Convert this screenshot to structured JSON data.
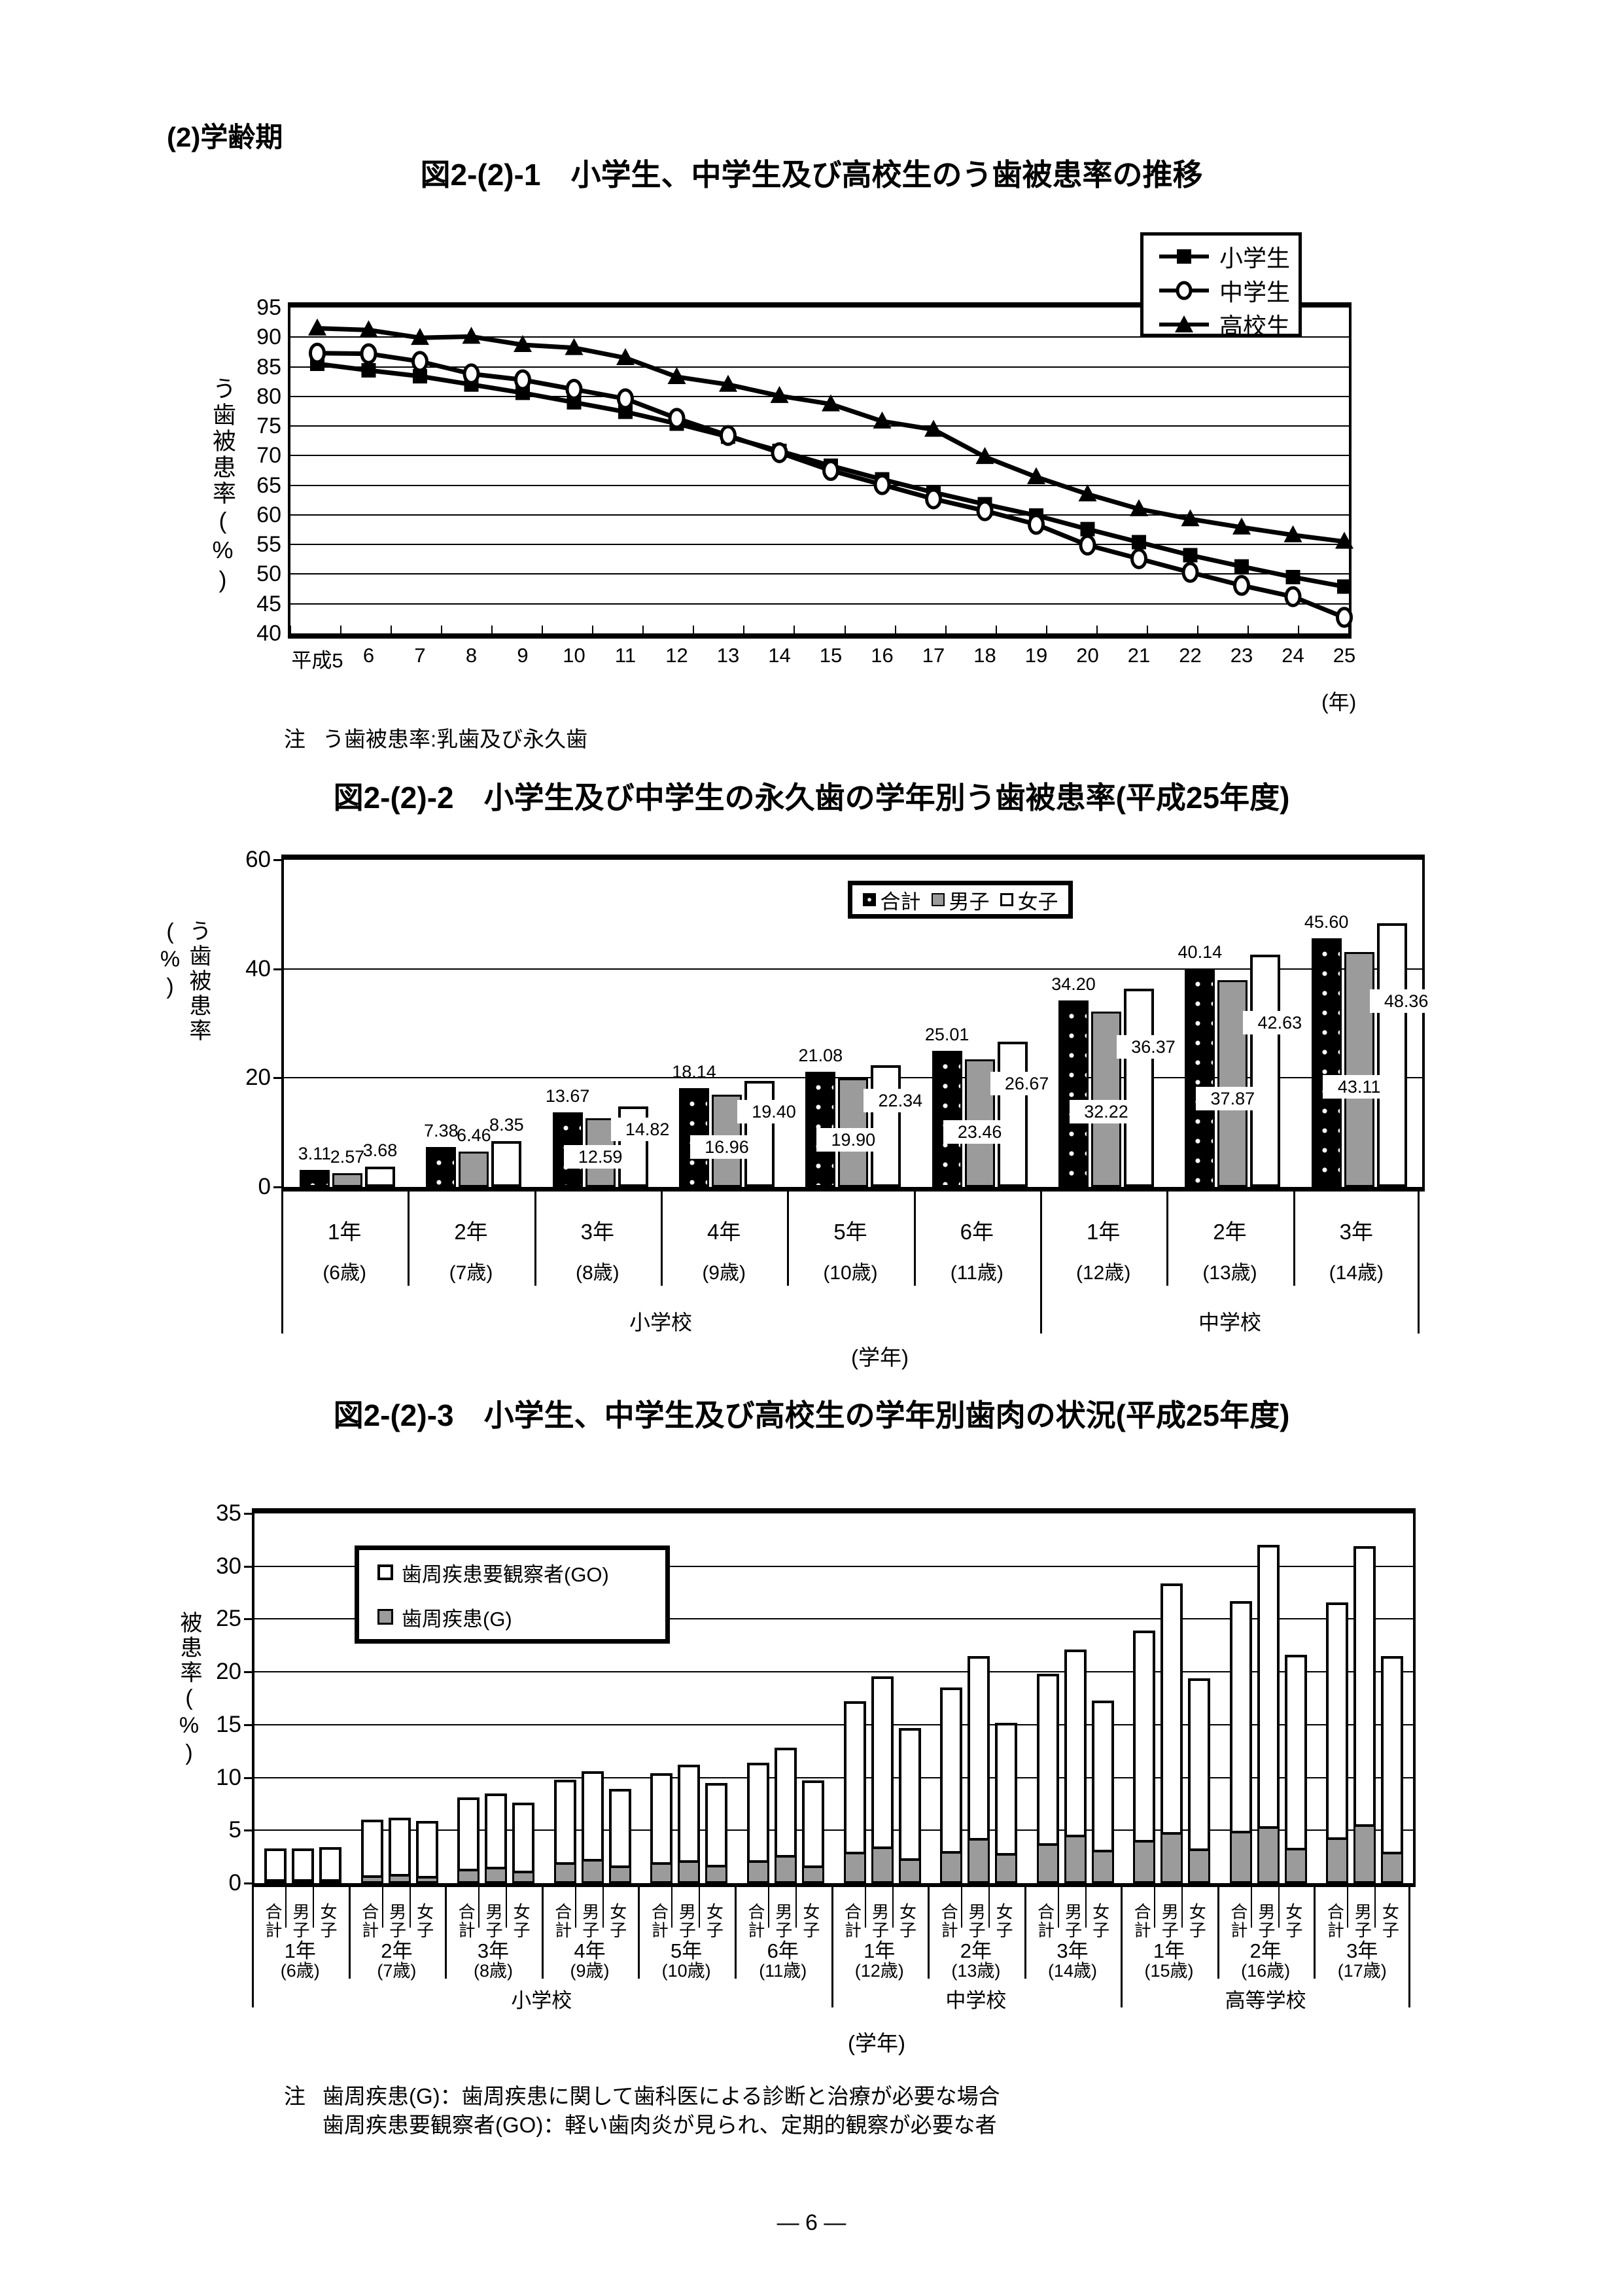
{
  "page": {
    "heading": "(2)学齢期",
    "note1": {
      "label": "注",
      "text": "う歯被患率:乳歯及び永久歯"
    },
    "note3": {
      "label": "注",
      "lines": [
        "歯周疾患(G)：歯周疾患に関して歯科医による診断と治療が必要な場合",
        "歯周疾患要観察者(GO)：軽い歯肉炎が見られ、定期的観察が必要な者"
      ]
    },
    "footer": "― 6 ―"
  },
  "chart_data": [
    {
      "type": "line",
      "title": "図2-(2)-1　小学生、中学生及び高校生のう歯被患率の推移",
      "ylabel": "う歯被患率(%)",
      "x_unit_label": "(年)",
      "ylim": [
        40,
        95
      ],
      "yticks": [
        95,
        90,
        85,
        80,
        75,
        70,
        65,
        60,
        55,
        50,
        45,
        40
      ],
      "categories": [
        "平成5",
        "6",
        "7",
        "8",
        "9",
        "10",
        "11",
        "12",
        "13",
        "14",
        "15",
        "16",
        "17",
        "18",
        "19",
        "20",
        "21",
        "22",
        "23",
        "24",
        "25"
      ],
      "legend_position": "top-right",
      "series": [
        {
          "name": "小学生",
          "marker": "square",
          "values": [
            85.5,
            84.4,
            83.4,
            82.0,
            80.6,
            79.0,
            77.4,
            75.4,
            73.2,
            70.8,
            68.3,
            66.0,
            63.8,
            61.8,
            59.9,
            57.6,
            55.4,
            53.2,
            51.3,
            49.5,
            47.9
          ]
        },
        {
          "name": "中学生",
          "marker": "circle",
          "values": [
            87.3,
            87.2,
            85.9,
            83.8,
            82.8,
            81.2,
            79.6,
            76.3,
            73.4,
            70.5,
            67.5,
            65.1,
            62.7,
            60.7,
            58.4,
            54.9,
            52.6,
            50.3,
            48.1,
            46.2,
            42.7
          ]
        },
        {
          "name": "高校生",
          "marker": "triangle",
          "values": [
            91.5,
            91.2,
            89.9,
            90.1,
            88.7,
            88.2,
            86.5,
            83.3,
            82.0,
            80.1,
            78.7,
            75.8,
            74.4,
            69.8,
            66.4,
            63.5,
            61.0,
            59.3,
            57.9,
            56.6,
            55.5
          ]
        }
      ]
    },
    {
      "type": "bar",
      "title": "図2-(2)-2　小学生及び中学生の永久歯の学年別う歯被患率(平成25年度)",
      "ylabel": "う歯被患率(%)",
      "xlabel": "(学年)",
      "ylim": [
        0,
        60
      ],
      "yticks": [
        60,
        40,
        20,
        0
      ],
      "legend": [
        "合計",
        "男子",
        "女子"
      ],
      "categories": [
        {
          "grade": "1年",
          "age": "(6歳)"
        },
        {
          "grade": "2年",
          "age": "(7歳)"
        },
        {
          "grade": "3年",
          "age": "(8歳)"
        },
        {
          "grade": "4年",
          "age": "(9歳)"
        },
        {
          "grade": "5年",
          "age": "(10歳)"
        },
        {
          "grade": "6年",
          "age": "(11歳)"
        },
        {
          "grade": "1年",
          "age": "(12歳)"
        },
        {
          "grade": "2年",
          "age": "(13歳)"
        },
        {
          "grade": "3年",
          "age": "(14歳)"
        }
      ],
      "school_groups": [
        {
          "label": "小学校",
          "span": 6
        },
        {
          "label": "中学校",
          "span": 3
        }
      ],
      "series": [
        {
          "name": "合計",
          "values": [
            "3.11",
            "7.38",
            "13.67",
            "18.14",
            "21.08",
            "25.01",
            "34.20",
            "40.14",
            "45.60"
          ]
        },
        {
          "name": "男子",
          "values": [
            "2.57",
            "6.46",
            "12.59",
            "16.96",
            "19.90",
            "23.46",
            "32.22",
            "37.87",
            "43.11"
          ]
        },
        {
          "name": "女子",
          "values": [
            "3.68",
            "8.35",
            "14.82",
            "19.40",
            "22.34",
            "26.67",
            "36.37",
            "42.63",
            "48.36"
          ]
        }
      ]
    },
    {
      "type": "stacked-bar",
      "title": "図2-(2)-3　小学生、中学生及び高校生の学年別歯肉の状況(平成25年度)",
      "ylabel": "被患率(%)",
      "xlabel": "(学年)",
      "ylim": [
        0,
        35
      ],
      "yticks": [
        35,
        30,
        25,
        20,
        15,
        10,
        5,
        0
      ],
      "legend": [
        "歯周疾患要観察者(GO)",
        "歯周疾患(G)"
      ],
      "bar_labels": [
        "合計",
        "男子",
        "女子"
      ],
      "categories": [
        {
          "grade": "1年",
          "age": "(6歳)"
        },
        {
          "grade": "2年",
          "age": "(7歳)"
        },
        {
          "grade": "3年",
          "age": "(8歳)"
        },
        {
          "grade": "4年",
          "age": "(9歳)"
        },
        {
          "grade": "5年",
          "age": "(10歳)"
        },
        {
          "grade": "6年",
          "age": "(11歳)"
        },
        {
          "grade": "1年",
          "age": "(12歳)"
        },
        {
          "grade": "2年",
          "age": "(13歳)"
        },
        {
          "grade": "3年",
          "age": "(14歳)"
        },
        {
          "grade": "1年",
          "age": "(15歳)"
        },
        {
          "grade": "2年",
          "age": "(16歳)"
        },
        {
          "grade": "3年",
          "age": "(17歳)"
        }
      ],
      "school_groups": [
        {
          "label": "小学校",
          "span": 6
        },
        {
          "label": "中学校",
          "span": 3
        },
        {
          "label": "高等学校",
          "span": 3
        }
      ],
      "series": [
        {
          "name": "歯周疾患(G)",
          "values": [
            [
              0.3,
              0.3,
              0.3
            ],
            [
              0.7,
              0.8,
              0.6
            ],
            [
              1.3,
              1.5,
              1.1
            ],
            [
              1.9,
              2.2,
              1.6
            ],
            [
              1.9,
              2.1,
              1.7
            ],
            [
              2.1,
              2.6,
              1.6
            ],
            [
              2.9,
              3.4,
              2.3
            ],
            [
              3.0,
              4.2,
              2.8
            ],
            [
              3.7,
              4.5,
              3.1
            ],
            [
              4.0,
              4.8,
              3.2
            ],
            [
              4.9,
              5.3,
              3.3
            ],
            [
              4.3,
              5.5,
              2.9
            ]
          ]
        },
        {
          "name": "歯周疾患要観察者(GO)",
          "values": [
            [
              3.0,
              3.0,
              3.1
            ],
            [
              5.3,
              5.4,
              5.3
            ],
            [
              6.8,
              7.0,
              6.5
            ],
            [
              7.9,
              8.4,
              7.3
            ],
            [
              8.5,
              9.1,
              7.8
            ],
            [
              9.3,
              10.2,
              8.1
            ],
            [
              14.3,
              16.2,
              12.4
            ],
            [
              15.5,
              17.3,
              12.4
            ],
            [
              16.1,
              17.6,
              14.2
            ],
            [
              19.9,
              23.6,
              16.2
            ],
            [
              21.8,
              26.7,
              18.3
            ],
            [
              22.3,
              26.4,
              18.6
            ]
          ]
        }
      ]
    }
  ]
}
